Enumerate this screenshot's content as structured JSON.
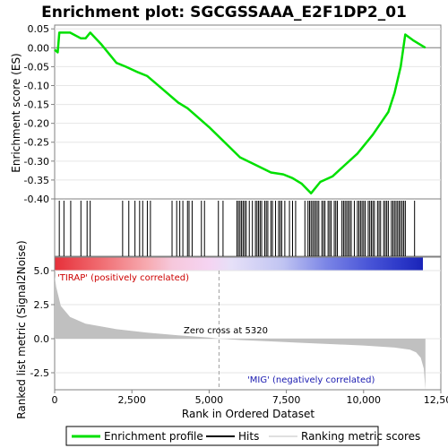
{
  "chart_data": [
    {
      "type": "line",
      "title": "Enrichment plot: SGCGSSAAA_E2F1DP2_01",
      "ylabel": "Enrichment score (ES)",
      "ylim": [
        -0.4,
        0.06
      ],
      "xlim": [
        0,
        12500
      ],
      "yticks": [
        "0.05",
        "0.00",
        "-0.05",
        "-0.10",
        "-0.15",
        "-0.20",
        "-0.25",
        "-0.30",
        "-0.35",
        "-0.40"
      ],
      "ytick_values": [
        0.05,
        0.0,
        -0.05,
        -0.1,
        -0.15,
        -0.2,
        -0.25,
        -0.3,
        -0.35,
        -0.4
      ],
      "series": [
        {
          "name": "Enrichment profile",
          "color": "#00e000",
          "x": [
            0,
            100,
            150,
            500,
            850,
            1000,
            1150,
            1500,
            2000,
            2300,
            2700,
            3000,
            3500,
            4000,
            4300,
            5000,
            5500,
            6000,
            6500,
            7000,
            7400,
            7700,
            8000,
            8300,
            8600,
            9000,
            9400,
            9800,
            10300,
            10800,
            11000,
            11200,
            11350,
            11600,
            11900,
            12000
          ],
          "y": [
            -0.005,
            -0.012,
            0.04,
            0.04,
            0.025,
            0.025,
            0.04,
            0.01,
            -0.04,
            -0.05,
            -0.065,
            -0.075,
            -0.11,
            -0.145,
            -0.16,
            -0.21,
            -0.25,
            -0.29,
            -0.31,
            -0.33,
            -0.335,
            -0.345,
            -0.36,
            -0.385,
            -0.355,
            -0.34,
            -0.31,
            -0.28,
            -0.23,
            -0.17,
            -0.12,
            -0.05,
            0.035,
            0.02,
            0.005,
            0.0
          ]
        }
      ],
      "hits": [
        150,
        300,
        520,
        850,
        1050,
        1150,
        2200,
        2400,
        2600,
        2750,
        2850,
        3000,
        3100,
        3800,
        3950,
        4050,
        4150,
        4300,
        4350,
        4450,
        4750,
        4850,
        5300,
        5450,
        5900,
        5950,
        6000,
        6050,
        6100,
        6150,
        6200,
        6300,
        6400,
        6500,
        6550,
        6600,
        6650,
        6700,
        6800,
        6850,
        6900,
        7000,
        7050,
        7150,
        7250,
        7300,
        7350,
        7450,
        7600,
        7700,
        7800,
        8100,
        8200,
        8250,
        8300,
        8350,
        8400,
        8450,
        8500,
        8550,
        8650,
        8700,
        8750,
        8850,
        8900,
        8950,
        9050,
        9100,
        9150,
        9300,
        9350,
        9400,
        9450,
        9500,
        9550,
        9600,
        9700,
        9800,
        9850,
        9900,
        9950,
        10000,
        10050,
        10150,
        10200,
        10250,
        10300,
        10350,
        10450,
        10500,
        10550,
        10650,
        10700,
        10750,
        10800,
        10900,
        10950,
        11000,
        11050,
        11100,
        11150,
        11200,
        11250,
        11300,
        11350,
        11650
      ]
    },
    {
      "type": "area",
      "xlabel": "Rank in Ordered Dataset",
      "ylabel": "Ranked list metric (Signal2Noise)",
      "ylim": [
        -3.75,
        5.0
      ],
      "xlim": [
        0,
        12500
      ],
      "yticks": [
        "5.0",
        "2.5",
        "0.0",
        "-2.5"
      ],
      "ytick_values": [
        5.0,
        2.5,
        0.0,
        -2.5
      ],
      "xticks": [
        "0",
        "2,500",
        "5,000",
        "7,500",
        "10,000",
        "12,500"
      ],
      "xtick_values": [
        0,
        2500,
        5000,
        7500,
        10000,
        12500
      ],
      "zero_cross": 5320,
      "series": [
        {
          "name": "Ranking metric scores",
          "color": "#c0c0c0",
          "x": [
            0,
            50,
            200,
            500,
            1000,
            2000,
            3000,
            4000,
            5000,
            5320,
            6000,
            7000,
            8000,
            9000,
            10000,
            11000,
            11500,
            11700,
            11850,
            11950,
            12000
          ],
          "y": [
            4.6,
            3.8,
            2.4,
            1.6,
            1.1,
            0.7,
            0.45,
            0.25,
            0.08,
            0.0,
            -0.1,
            -0.2,
            -0.3,
            -0.4,
            -0.5,
            -0.65,
            -0.8,
            -1.0,
            -1.4,
            -2.2,
            -3.75
          ]
        }
      ],
      "annotations": {
        "positive": "'TIRAP' (positively correlated)",
        "negative": "'MIG' (negatively correlated)",
        "zero": "Zero cross at 5320"
      }
    }
  ],
  "legend": {
    "items": [
      {
        "label": "Enrichment profile",
        "color": "#00e000"
      },
      {
        "label": "Hits",
        "color": "#000000"
      },
      {
        "label": "Ranking metric scores",
        "color": "#c0c0c0"
      }
    ]
  }
}
